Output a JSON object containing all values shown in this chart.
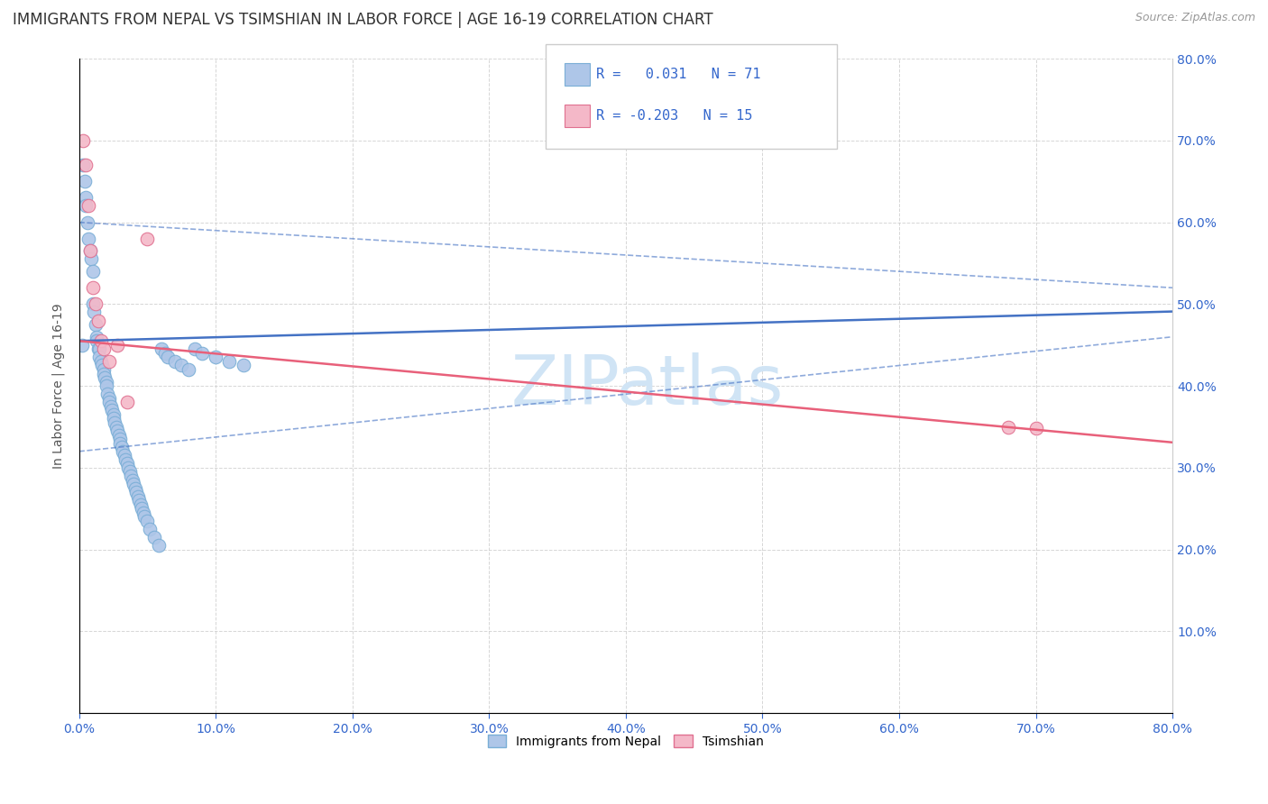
{
  "title": "IMMIGRANTS FROM NEPAL VS TSIMSHIAN IN LABOR FORCE | AGE 16-19 CORRELATION CHART",
  "source": "Source: ZipAtlas.com",
  "ylabel": "In Labor Force | Age 16-19",
  "xlim": [
    0.0,
    0.8
  ],
  "ylim": [
    0.0,
    0.8
  ],
  "nepal_color": "#aec6e8",
  "tsimshian_color": "#f4b8c8",
  "nepal_edge": "#7aaed6",
  "tsimshian_edge": "#e07090",
  "nepal_line_color": "#4472c4",
  "tsimshian_line_color": "#e8607a",
  "nepal_conf_color": "#b0cce8",
  "nepal_R": 0.031,
  "nepal_N": 71,
  "tsimshian_R": -0.203,
  "tsimshian_N": 15,
  "nepal_x": [
    0.002,
    0.003,
    0.004,
    0.005,
    0.005,
    0.006,
    0.007,
    0.008,
    0.009,
    0.01,
    0.01,
    0.011,
    0.012,
    0.013,
    0.013,
    0.014,
    0.015,
    0.015,
    0.016,
    0.017,
    0.018,
    0.018,
    0.019,
    0.02,
    0.02,
    0.021,
    0.022,
    0.022,
    0.023,
    0.024,
    0.025,
    0.025,
    0.026,
    0.027,
    0.028,
    0.029,
    0.03,
    0.03,
    0.031,
    0.032,
    0.033,
    0.034,
    0.035,
    0.036,
    0.037,
    0.038,
    0.039,
    0.04,
    0.041,
    0.042,
    0.043,
    0.044,
    0.045,
    0.046,
    0.047,
    0.048,
    0.05,
    0.052,
    0.055,
    0.058,
    0.06,
    0.063,
    0.065,
    0.07,
    0.075,
    0.08,
    0.085,
    0.09,
    0.1,
    0.11,
    0.12
  ],
  "nepal_y": [
    0.45,
    0.67,
    0.65,
    0.63,
    0.62,
    0.6,
    0.58,
    0.565,
    0.555,
    0.54,
    0.5,
    0.49,
    0.475,
    0.46,
    0.455,
    0.445,
    0.445,
    0.435,
    0.43,
    0.425,
    0.42,
    0.415,
    0.41,
    0.405,
    0.4,
    0.39,
    0.385,
    0.38,
    0.375,
    0.37,
    0.365,
    0.36,
    0.355,
    0.35,
    0.345,
    0.34,
    0.335,
    0.33,
    0.325,
    0.32,
    0.315,
    0.31,
    0.305,
    0.3,
    0.295,
    0.29,
    0.285,
    0.28,
    0.275,
    0.27,
    0.265,
    0.26,
    0.255,
    0.25,
    0.245,
    0.24,
    0.235,
    0.225,
    0.215,
    0.205,
    0.445,
    0.44,
    0.435,
    0.43,
    0.425,
    0.42,
    0.445,
    0.44,
    0.435,
    0.43,
    0.425
  ],
  "tsimshian_x": [
    0.003,
    0.005,
    0.007,
    0.008,
    0.01,
    0.012,
    0.014,
    0.016,
    0.018,
    0.022,
    0.028,
    0.035,
    0.05,
    0.68,
    0.7
  ],
  "tsimshian_y": [
    0.7,
    0.67,
    0.62,
    0.565,
    0.52,
    0.5,
    0.48,
    0.455,
    0.445,
    0.43,
    0.45,
    0.38,
    0.58,
    0.35,
    0.348
  ],
  "background_color": "#ffffff",
  "grid_color": "#cccccc",
  "title_fontsize": 12,
  "label_fontsize": 10,
  "tick_fontsize": 10,
  "marker_size": 110,
  "legend_R_color": "#3366cc",
  "watermark_color": "#d0e4f5"
}
